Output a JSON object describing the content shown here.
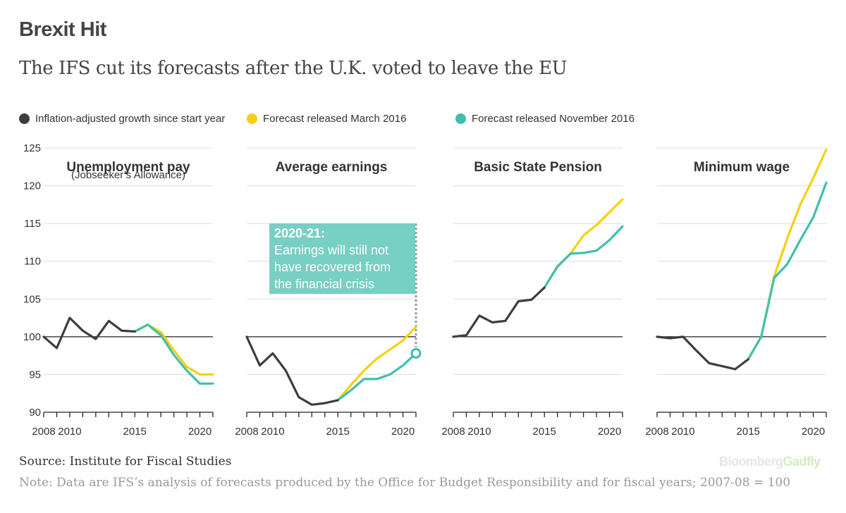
{
  "title": "Brexit Hit",
  "subtitle": "The IFS cut its forecasts after the U.K. voted to leave the EU",
  "legend": [
    {
      "label": "Inflation-adjusted growth since start year",
      "color": "#3d3d3f"
    },
    {
      "label": "Forecast released March 2016",
      "color": "#f5d10c"
    },
    {
      "label": "Forecast released November 2016",
      "color": "#3fbfad"
    }
  ],
  "source": "Source: Institute for Fiscal Studies",
  "note": "Note: Data are IFS’s analysis of forecasts produced by the Office for Budget Responsibility and for fiscal years; 2007-08 = 100",
  "brand": {
    "part1": "Bloomberg",
    "part2": "Gadfly"
  },
  "chart_data": {
    "type": "line",
    "y_ticks": [
      90,
      95,
      100,
      105,
      110,
      115,
      120,
      125
    ],
    "ylim": [
      90,
      125
    ],
    "xlim": [
      2008,
      2021
    ],
    "x_tick_labels": [
      "2008",
      "2010",
      "2015",
      "2020"
    ],
    "colors": {
      "history": "#3d3d3f",
      "march": "#f5d10c",
      "november": "#3fbfad",
      "callout": "#78cfc4"
    },
    "panels": [
      {
        "title": "Unemployment pay",
        "subtitle": "(Jobseeker’s Allowance)",
        "history": [
          [
            2008,
            100
          ],
          [
            2009,
            98.5
          ],
          [
            2010,
            102.5
          ],
          [
            2011,
            100.8
          ],
          [
            2012,
            99.7
          ],
          [
            2013,
            102.1
          ],
          [
            2014,
            100.8
          ],
          [
            2015,
            100.7
          ]
        ],
        "march": [
          [
            2015,
            100.7
          ],
          [
            2016,
            101.6
          ],
          [
            2017,
            100.6
          ],
          [
            2018,
            98.2
          ],
          [
            2019,
            96.0
          ],
          [
            2020,
            95.0
          ],
          [
            2021,
            95.0
          ]
        ],
        "november": [
          [
            2015,
            100.7
          ],
          [
            2016,
            101.6
          ],
          [
            2017,
            100.2
          ],
          [
            2018,
            97.6
          ],
          [
            2019,
            95.5
          ],
          [
            2020,
            93.8
          ],
          [
            2021,
            93.8
          ]
        ]
      },
      {
        "title": "Average earnings",
        "subtitle": "",
        "history": [
          [
            2008,
            100
          ],
          [
            2009,
            96.2
          ],
          [
            2010,
            97.8
          ],
          [
            2011,
            95.5
          ],
          [
            2012,
            92.0
          ],
          [
            2013,
            91.0
          ],
          [
            2014,
            91.2
          ],
          [
            2015,
            91.6
          ]
        ],
        "march": [
          [
            2015,
            91.6
          ],
          [
            2016,
            93.6
          ],
          [
            2017,
            95.5
          ],
          [
            2018,
            97.1
          ],
          [
            2019,
            98.3
          ],
          [
            2020,
            99.5
          ],
          [
            2021,
            101.3
          ]
        ],
        "november": [
          [
            2015,
            91.6
          ],
          [
            2016,
            92.9
          ],
          [
            2017,
            94.4
          ],
          [
            2018,
            94.4
          ],
          [
            2019,
            95.0
          ],
          [
            2020,
            96.2
          ],
          [
            2021,
            97.8
          ]
        ],
        "callout": {
          "title": "2020-21:",
          "lines": [
            "Earnings will still not",
            "have recovered from",
            "the financial crisis"
          ]
        }
      },
      {
        "title": "Basic State Pension",
        "subtitle": "",
        "history": [
          [
            2008,
            100
          ],
          [
            2009,
            100.2
          ],
          [
            2010,
            102.8
          ],
          [
            2011,
            101.9
          ],
          [
            2012,
            102.1
          ],
          [
            2013,
            104.7
          ],
          [
            2014,
            104.9
          ],
          [
            2015,
            106.5
          ]
        ],
        "march": [
          [
            2015,
            106.5
          ],
          [
            2016,
            109.3
          ],
          [
            2017,
            111.0
          ],
          [
            2018,
            113.4
          ],
          [
            2019,
            114.8
          ],
          [
            2020,
            116.5
          ],
          [
            2021,
            118.2
          ]
        ],
        "november": [
          [
            2015,
            106.5
          ],
          [
            2016,
            109.3
          ],
          [
            2017,
            111.0
          ],
          [
            2018,
            111.1
          ],
          [
            2019,
            111.4
          ],
          [
            2020,
            112.8
          ],
          [
            2021,
            114.6
          ]
        ]
      },
      {
        "title": "Minimum wage",
        "subtitle": "",
        "history": [
          [
            2008,
            100
          ],
          [
            2009,
            99.8
          ],
          [
            2010,
            100
          ],
          [
            2011,
            98.2
          ],
          [
            2012,
            96.5
          ],
          [
            2013,
            96.1
          ],
          [
            2014,
            95.7
          ],
          [
            2015,
            97.0
          ]
        ],
        "march": [
          [
            2015,
            97.0
          ],
          [
            2016,
            100.0
          ],
          [
            2017,
            108.0
          ],
          [
            2018,
            113.0
          ],
          [
            2019,
            117.5
          ],
          [
            2020,
            121.0
          ],
          [
            2021,
            124.8
          ]
        ],
        "november": [
          [
            2015,
            97.0
          ],
          [
            2016,
            100.0
          ],
          [
            2017,
            107.8
          ],
          [
            2018,
            109.6
          ],
          [
            2019,
            112.8
          ],
          [
            2020,
            115.8
          ],
          [
            2021,
            120.4
          ]
        ]
      }
    ]
  }
}
